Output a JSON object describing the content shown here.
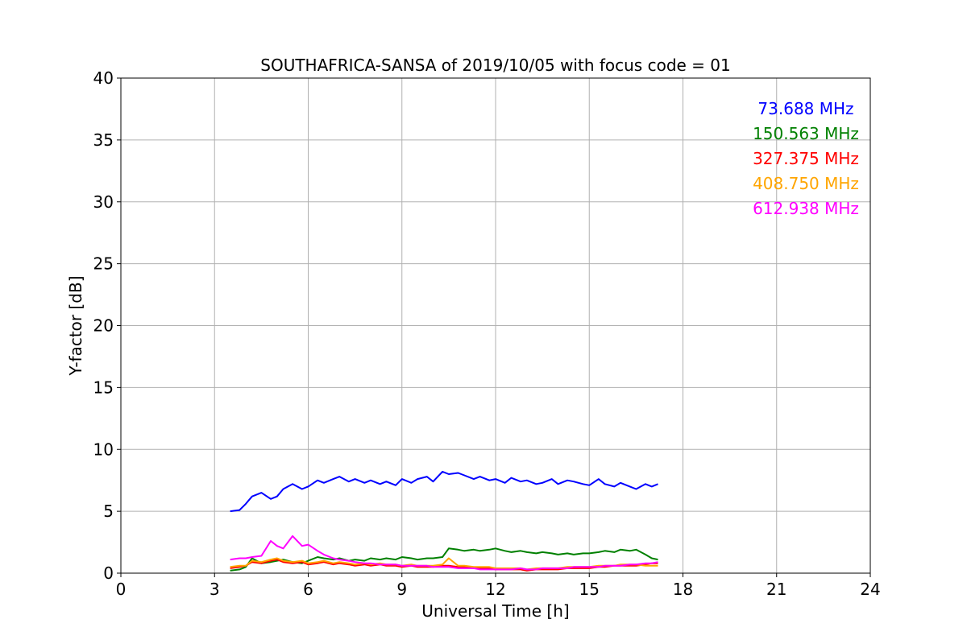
{
  "chart_data": {
    "type": "line",
    "title": "SOUTHAFRICA-SANSA of 2019/10/05 with focus code = 01",
    "xlabel": "Universal Time [h]",
    "ylabel": "Y-factor [dB]",
    "xlim": [
      0,
      24
    ],
    "ylim": [
      0,
      40
    ],
    "xticks": [
      0,
      3,
      6,
      9,
      12,
      15,
      18,
      21,
      24
    ],
    "yticks": [
      0,
      5,
      10,
      15,
      20,
      25,
      30,
      35,
      40
    ],
    "grid": true,
    "legend_position": "top-right",
    "series": [
      {
        "name": "73.688 MHz",
        "color": "#0000ff",
        "x": [
          3.5,
          3.8,
          4.0,
          4.2,
          4.5,
          4.8,
          5.0,
          5.2,
          5.5,
          5.8,
          6.0,
          6.3,
          6.5,
          6.8,
          7.0,
          7.3,
          7.5,
          7.8,
          8.0,
          8.3,
          8.5,
          8.8,
          9.0,
          9.3,
          9.5,
          9.8,
          10.0,
          10.3,
          10.5,
          10.8,
          11.0,
          11.3,
          11.5,
          11.8,
          12.0,
          12.3,
          12.5,
          12.8,
          13.0,
          13.3,
          13.5,
          13.8,
          14.0,
          14.3,
          14.5,
          14.8,
          15.0,
          15.3,
          15.5,
          15.8,
          16.0,
          16.3,
          16.5,
          16.8,
          17.0,
          17.2
        ],
        "y": [
          5.0,
          5.1,
          5.6,
          6.2,
          6.5,
          6.0,
          6.2,
          6.8,
          7.2,
          6.8,
          7.0,
          7.5,
          7.3,
          7.6,
          7.8,
          7.4,
          7.6,
          7.3,
          7.5,
          7.2,
          7.4,
          7.1,
          7.6,
          7.3,
          7.6,
          7.8,
          7.4,
          8.2,
          8.0,
          8.1,
          7.9,
          7.6,
          7.8,
          7.5,
          7.6,
          7.3,
          7.7,
          7.4,
          7.5,
          7.2,
          7.3,
          7.6,
          7.2,
          7.5,
          7.4,
          7.2,
          7.1,
          7.6,
          7.2,
          7.0,
          7.3,
          7.0,
          6.8,
          7.2,
          7.0,
          7.2
        ]
      },
      {
        "name": "150.563 MHz",
        "color": "#008000",
        "x": [
          3.5,
          3.8,
          4.0,
          4.2,
          4.5,
          4.8,
          5.0,
          5.2,
          5.5,
          5.8,
          6.0,
          6.3,
          6.5,
          6.8,
          7.0,
          7.3,
          7.5,
          7.8,
          8.0,
          8.3,
          8.5,
          8.8,
          9.0,
          9.3,
          9.5,
          9.8,
          10.0,
          10.3,
          10.5,
          10.8,
          11.0,
          11.3,
          11.5,
          11.8,
          12.0,
          12.3,
          12.5,
          12.8,
          13.0,
          13.3,
          13.5,
          13.8,
          14.0,
          14.3,
          14.5,
          14.8,
          15.0,
          15.3,
          15.5,
          15.8,
          16.0,
          16.3,
          16.5,
          16.8,
          17.0,
          17.2
        ],
        "y": [
          0.2,
          0.3,
          0.5,
          1.2,
          0.8,
          0.9,
          1.0,
          1.1,
          0.9,
          0.8,
          1.0,
          1.3,
          1.2,
          1.1,
          1.2,
          1.0,
          1.1,
          1.0,
          1.2,
          1.1,
          1.2,
          1.1,
          1.3,
          1.2,
          1.1,
          1.2,
          1.2,
          1.3,
          2.0,
          1.9,
          1.8,
          1.9,
          1.8,
          1.9,
          2.0,
          1.8,
          1.7,
          1.8,
          1.7,
          1.6,
          1.7,
          1.6,
          1.5,
          1.6,
          1.5,
          1.6,
          1.6,
          1.7,
          1.8,
          1.7,
          1.9,
          1.8,
          1.9,
          1.5,
          1.2,
          1.1
        ]
      },
      {
        "name": "327.375 MHz",
        "color": "#ff0000",
        "x": [
          3.5,
          3.8,
          4.0,
          4.2,
          4.5,
          4.8,
          5.0,
          5.2,
          5.5,
          5.8,
          6.0,
          6.3,
          6.5,
          6.8,
          7.0,
          7.3,
          7.5,
          7.8,
          8.0,
          8.3,
          8.5,
          8.8,
          9.0,
          9.3,
          9.5,
          9.8,
          10.0,
          10.3,
          10.5,
          10.8,
          11.0,
          11.3,
          11.5,
          11.8,
          12.0,
          12.3,
          12.5,
          12.8,
          13.0,
          13.3,
          13.5,
          13.8,
          14.0,
          14.3,
          14.5,
          14.8,
          15.0,
          15.3,
          15.5,
          15.8,
          16.0,
          16.3,
          16.5,
          16.8,
          17.0,
          17.2
        ],
        "y": [
          0.4,
          0.5,
          0.6,
          0.9,
          0.8,
          1.0,
          1.1,
          0.9,
          0.8,
          0.9,
          0.7,
          0.8,
          0.9,
          0.7,
          0.8,
          0.7,
          0.6,
          0.7,
          0.6,
          0.7,
          0.6,
          0.6,
          0.5,
          0.6,
          0.5,
          0.5,
          0.5,
          0.6,
          0.6,
          0.5,
          0.5,
          0.4,
          0.4,
          0.4,
          0.3,
          0.3,
          0.3,
          0.3,
          0.2,
          0.3,
          0.3,
          0.3,
          0.3,
          0.4,
          0.4,
          0.4,
          0.4,
          0.5,
          0.5,
          0.6,
          0.6,
          0.6,
          0.6,
          0.7,
          0.8,
          0.8
        ]
      },
      {
        "name": "408.750 MHz",
        "color": "#ffa500",
        "x": [
          3.5,
          3.8,
          4.0,
          4.2,
          4.5,
          4.8,
          5.0,
          5.2,
          5.5,
          5.8,
          6.0,
          6.3,
          6.5,
          6.8,
          7.0,
          7.3,
          7.5,
          7.8,
          8.0,
          8.3,
          8.5,
          8.8,
          9.0,
          9.3,
          9.5,
          9.8,
          10.0,
          10.3,
          10.5,
          10.8,
          11.0,
          11.3,
          11.5,
          11.8,
          12.0,
          12.3,
          12.5,
          12.8,
          13.0,
          13.3,
          13.5,
          13.8,
          14.0,
          14.3,
          14.5,
          14.8,
          15.0,
          15.3,
          15.5,
          15.8,
          16.0,
          16.3,
          16.5,
          16.8,
          17.0,
          17.2
        ],
        "y": [
          0.5,
          0.6,
          0.6,
          1.0,
          0.9,
          1.1,
          1.2,
          1.0,
          0.9,
          1.0,
          0.8,
          0.9,
          1.0,
          0.8,
          0.9,
          0.8,
          0.7,
          0.8,
          0.7,
          0.8,
          0.7,
          0.7,
          0.6,
          0.7,
          0.6,
          0.6,
          0.6,
          0.7,
          1.2,
          0.6,
          0.6,
          0.5,
          0.5,
          0.5,
          0.4,
          0.4,
          0.4,
          0.4,
          0.3,
          0.4,
          0.4,
          0.4,
          0.4,
          0.5,
          0.5,
          0.5,
          0.5,
          0.6,
          0.6,
          0.6,
          0.7,
          0.7,
          0.7,
          0.6,
          0.6,
          0.6
        ]
      },
      {
        "name": "612.938 MHz",
        "color": "#ff00ff",
        "x": [
          3.5,
          3.8,
          4.0,
          4.2,
          4.5,
          4.8,
          5.0,
          5.2,
          5.5,
          5.8,
          6.0,
          6.3,
          6.5,
          6.8,
          7.0,
          7.3,
          7.5,
          7.8,
          8.0,
          8.3,
          8.5,
          8.8,
          9.0,
          9.3,
          9.5,
          9.8,
          10.0,
          10.3,
          10.5,
          10.8,
          11.0,
          11.3,
          11.5,
          11.8,
          12.0,
          12.3,
          12.5,
          12.8,
          13.0,
          13.3,
          13.5,
          13.8,
          14.0,
          14.3,
          14.5,
          14.8,
          15.0,
          15.3,
          15.5,
          15.8,
          16.0,
          16.3,
          16.5,
          16.8,
          17.0,
          17.2
        ],
        "y": [
          1.1,
          1.2,
          1.2,
          1.3,
          1.4,
          2.6,
          2.2,
          2.0,
          3.0,
          2.2,
          2.3,
          1.8,
          1.5,
          1.2,
          1.1,
          1.0,
          0.9,
          0.8,
          0.8,
          0.7,
          0.7,
          0.7,
          0.6,
          0.6,
          0.6,
          0.6,
          0.5,
          0.5,
          0.5,
          0.4,
          0.4,
          0.4,
          0.3,
          0.3,
          0.3,
          0.3,
          0.3,
          0.4,
          0.3,
          0.3,
          0.4,
          0.4,
          0.4,
          0.4,
          0.5,
          0.5,
          0.5,
          0.5,
          0.6,
          0.6,
          0.6,
          0.7,
          0.7,
          0.8,
          0.8,
          0.9
        ]
      }
    ]
  }
}
